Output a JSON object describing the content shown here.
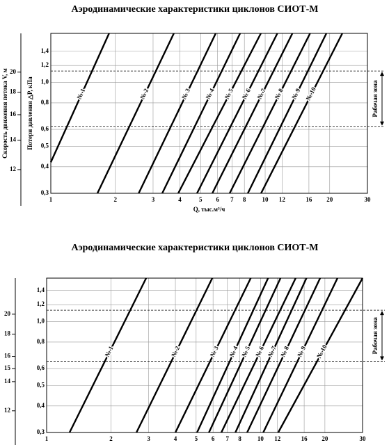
{
  "chart_data": [
    {
      "type": "line",
      "title": "Аэродинамические характеристики циклонов СИОТ-М",
      "xlabel": "Q, тыс.м³/ч",
      "ylabel": "Потери давления △P, кПа",
      "y2label": "Скорость движения потока V, м",
      "xscale": "log",
      "yscale": "log",
      "grid": true,
      "color": "#000000",
      "xlim": [
        1,
        30
      ],
      "ylim": [
        0.3,
        1.7
      ],
      "y2lim": [
        10.6,
        24.5
      ],
      "xticks": [
        1,
        2,
        3,
        4,
        5,
        6,
        7,
        8,
        10,
        12,
        16,
        20,
        30
      ],
      "yticks": [
        {
          "value": 0.3,
          "label": "0,3"
        },
        {
          "value": 0.4,
          "label": "0,4"
        },
        {
          "value": 0.5,
          "label": "0,5"
        },
        {
          "value": 0.6,
          "label": "0,6"
        },
        {
          "value": 0.8,
          "label": "0,8"
        },
        {
          "value": 1.0,
          "label": "1,0"
        },
        {
          "value": 1.2,
          "label": "1,2"
        },
        {
          "value": 1.4,
          "label": "1,4"
        }
      ],
      "y2ticks": [
        12,
        14,
        16,
        18,
        20
      ],
      "series": [
        {
          "name": "№ 1",
          "x": [
            1,
            1.87
          ],
          "values": [
            0.42,
            1.7
          ]
        },
        {
          "name": "№ 2",
          "x": [
            1.65,
            3.75
          ],
          "values": [
            0.3,
            1.7
          ]
        },
        {
          "name": "№ 3",
          "x": [
            2.57,
            5.88
          ],
          "values": [
            0.3,
            1.7
          ]
        },
        {
          "name": "№ 4",
          "x": [
            3.31,
            7.64
          ],
          "values": [
            0.3,
            1.7
          ]
        },
        {
          "name": "№ 5",
          "x": [
            3.93,
            9.55
          ],
          "values": [
            0.3,
            1.7
          ]
        },
        {
          "name": "№ 6",
          "x": [
            4.81,
            11.4
          ],
          "values": [
            0.3,
            1.7
          ]
        },
        {
          "name": "№ 7",
          "x": [
            5.67,
            13.4
          ],
          "values": [
            0.3,
            1.7
          ]
        },
        {
          "name": "№ 8",
          "x": [
            6.83,
            16.2
          ],
          "values": [
            0.3,
            1.7
          ]
        },
        {
          "name": "№ 9",
          "x": [
            8.3,
            19.3
          ],
          "values": [
            0.3,
            1.7
          ]
        },
        {
          "name": "№ 10",
          "x": [
            9.57,
            22.9
          ],
          "values": [
            0.3,
            1.7
          ]
        }
      ],
      "reference_lines": [
        1.13,
        0.62
      ],
      "zone_label": "Рабочая зона"
    },
    {
      "type": "line",
      "title": "Аэродинамические характеристики циклонов СИОТ-М",
      "xscale": "log",
      "yscale": "log",
      "grid": true,
      "color": "#000000",
      "xlim": [
        1,
        30
      ],
      "ylim": [
        0.3,
        1.6
      ],
      "y2lim": [
        10.7,
        24.2
      ],
      "xticks": [
        1,
        2,
        3,
        4,
        5,
        6,
        7,
        8,
        10,
        12,
        16,
        20,
        30
      ],
      "yticks": [
        {
          "value": 0.3,
          "label": "0,3"
        },
        {
          "value": 0.4,
          "label": "0,4"
        },
        {
          "value": 0.5,
          "label": "0,5"
        },
        {
          "value": 0.6,
          "label": "0,6"
        },
        {
          "value": 0.8,
          "label": "0,8"
        },
        {
          "value": 1.0,
          "label": "1,0"
        },
        {
          "value": 1.2,
          "label": "1,2"
        },
        {
          "value": 1.4,
          "label": "1,4"
        }
      ],
      "y2ticks": [
        12,
        14,
        15,
        16,
        18,
        20
      ],
      "series": [
        {
          "name": "№ 1",
          "x": [
            1.28,
            2.92
          ],
          "values": [
            0.3,
            1.6
          ]
        },
        {
          "name": "№ 2",
          "x": [
            2.63,
            5.95
          ],
          "values": [
            0.3,
            1.6
          ]
        },
        {
          "name": "№ 3",
          "x": [
            4.0,
            9.0
          ],
          "values": [
            0.3,
            1.6
          ]
        },
        {
          "name": "№ 4",
          "x": [
            5.05,
            10.85
          ],
          "values": [
            0.3,
            1.6
          ]
        },
        {
          "name": "№ 5",
          "x": [
            5.74,
            12.4
          ],
          "values": [
            0.3,
            1.6
          ]
        },
        {
          "name": "№ 6",
          "x": [
            6.56,
            14.6
          ],
          "values": [
            0.3,
            1.6
          ]
        },
        {
          "name": "№ 7",
          "x": [
            7.63,
            16.4
          ],
          "values": [
            0.3,
            1.6
          ]
        },
        {
          "name": "№ 8",
          "x": [
            8.66,
            19.0
          ],
          "values": [
            0.3,
            1.6
          ]
        },
        {
          "name": "№ 9",
          "x": [
            10.3,
            22.9
          ],
          "values": [
            0.3,
            1.6
          ]
        },
        {
          "name": "№ 10",
          "x": [
            12.1,
            30
          ],
          "values": [
            0.3,
            1.6
          ]
        }
      ],
      "reference_lines": [
        1.13,
        0.65
      ],
      "zone_label": "Рабочая зона"
    }
  ]
}
